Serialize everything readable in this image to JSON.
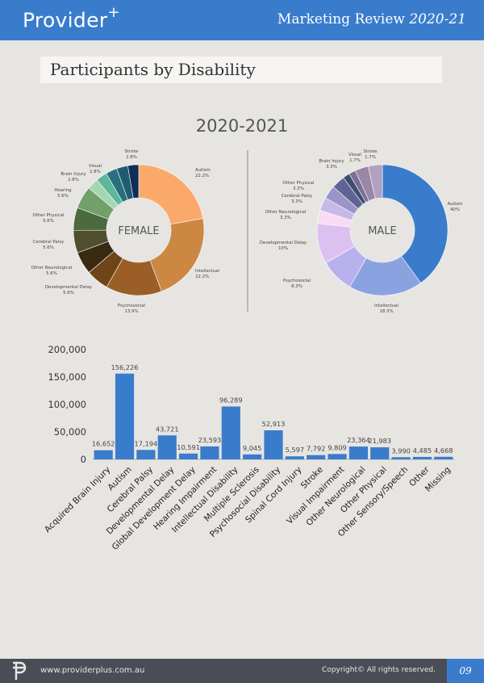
{
  "header": {
    "logo_text": "Provider",
    "logo_sup": "+",
    "review_text": "Marketing Review ",
    "review_year": "2020-21"
  },
  "section_title": "Participants by Disability",
  "year_title": "2020-2021",
  "colors": {
    "header_bg": "#3a7ccc",
    "bar": "#3a7ccc",
    "footer_bg": "#4a4d55"
  },
  "chart_data": [
    {
      "type": "pie",
      "title": "",
      "center_label": "FEMALE",
      "slices": [
        {
          "label": "Autism",
          "pct_label": "22.2%",
          "value": 22.2,
          "color": "#fba96a"
        },
        {
          "label": "Intellectual",
          "pct_label": "22.2%",
          "value": 22.2,
          "color": "#cc8743"
        },
        {
          "label": "Psychosocial",
          "pct_label": "13.9%",
          "value": 13.9,
          "color": "#9a5e26"
        },
        {
          "label": "Developmental Delay",
          "pct_label": "5.6%",
          "value": 5.6,
          "color": "#6e4419"
        },
        {
          "label": "Other Neurological",
          "pct_label": "5.6%",
          "value": 5.6,
          "color": "#3b2a12"
        },
        {
          "label": "Cerebral Palsy",
          "pct_label": "5.6%",
          "value": 5.6,
          "color": "#4f4e2e"
        },
        {
          "label": "Other Physical",
          "pct_label": "5.6%",
          "value": 5.6,
          "color": "#4b6a3d"
        },
        {
          "label": "Hearing",
          "pct_label": "5.6%",
          "value": 5.6,
          "color": "#71a068"
        },
        {
          "label": "Brain Injury",
          "pct_label": "2.8%",
          "value": 2.8,
          "color": "#a6d6b1"
        },
        {
          "label": "Visual",
          "pct_label": "2.8%",
          "value": 2.8,
          "color": "#5cb89b"
        },
        {
          "label": "Stroke",
          "pct_label": "2.8%",
          "value": 2.8,
          "color": "#27707e"
        },
        {
          "label": "",
          "pct_label": "",
          "value": 2.8,
          "color": "#1f5c72"
        },
        {
          "label": "",
          "pct_label": "",
          "value": 2.7,
          "color": "#0f2d55"
        }
      ]
    },
    {
      "type": "pie",
      "title": "",
      "center_label": "MALE",
      "slices": [
        {
          "label": "Autism",
          "pct_label": "40%",
          "value": 40,
          "color": "#3a7ccc"
        },
        {
          "label": "Intellectual",
          "pct_label": "18.3%",
          "value": 18.3,
          "color": "#8aa2e0"
        },
        {
          "label": "Psychosocial",
          "pct_label": "8.3%",
          "value": 8.3,
          "color": "#b8b0ec"
        },
        {
          "label": "Developmental Delay",
          "pct_label": "10%",
          "value": 10,
          "color": "#dcc1f0"
        },
        {
          "label": "Other Neurological",
          "pct_label": "3.3%",
          "value": 3.3,
          "color": "#f7dcf4"
        },
        {
          "label": "Cerebral Palsy",
          "pct_label": "3.3%",
          "value": 3.3,
          "color": "#c5b9e6"
        },
        {
          "label": "Other Physical",
          "pct_label": "3.3%",
          "value": 3.3,
          "color": "#9a95c8"
        },
        {
          "label": "Brain Injury",
          "pct_label": "3.3%",
          "value": 3.3,
          "color": "#5f6494"
        },
        {
          "label": "Visual",
          "pct_label": "1.7%",
          "value": 1.7,
          "color": "#3d4f6e"
        },
        {
          "label": "Stroke",
          "pct_label": "1.7%",
          "value": 1.7,
          "color": "#7a6f96"
        },
        {
          "label": "",
          "pct_label": "",
          "value": 3.3,
          "color": "#9a87a6"
        },
        {
          "label": "",
          "pct_label": "",
          "value": 3.5,
          "color": "#b1a0c0"
        }
      ]
    },
    {
      "type": "bar",
      "title": "",
      "xlabel": "",
      "ylabel": "",
      "ylim": [
        0,
        200000
      ],
      "yticks": [
        0,
        50000,
        100000,
        150000,
        200000
      ],
      "ytick_labels": [
        "0",
        "50,000",
        "100,000",
        "150,000",
        "200,000"
      ],
      "categories": [
        "Acquired Brain Injury",
        "Autism",
        "Cerebral Palsy",
        "Developmental Delay",
        "Global Development Delay",
        "Hearing Impairment",
        "Intellectual Disability",
        "Multiple Sclerosis",
        "Psychosocial Disability",
        "Spinal Cord Injury",
        "Stroke",
        "Visual Impairment",
        "Other Neurological",
        "Other Physical",
        "Other Sensory/Speech",
        "Other",
        "Missing"
      ],
      "values": [
        16652,
        156226,
        17194,
        43721,
        10591,
        23593,
        96289,
        9045,
        52913,
        5597,
        7792,
        9809,
        23364,
        21983,
        3990,
        4485,
        4668
      ],
      "value_labels": [
        "16,652",
        "156,226",
        "17,194",
        "43,721",
        "10,591",
        "23,593",
        "96,289",
        "9,045",
        "52,913",
        "5,597",
        "7,792",
        "9,809",
        "23,364",
        "21,983",
        "3,990",
        "4,485",
        "4,668"
      ]
    }
  ],
  "footer": {
    "url": "www.providerplus.com.au",
    "copyright": "Copyright© All rights reserved.",
    "page": "09"
  }
}
